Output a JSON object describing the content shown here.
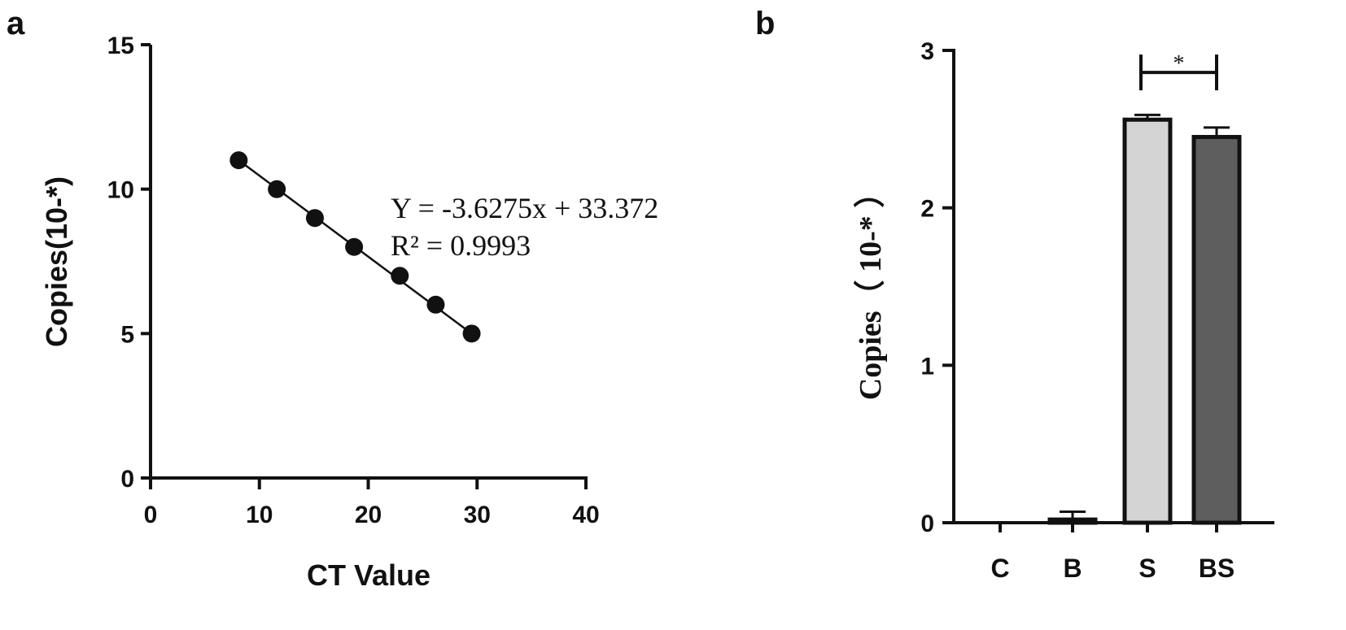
{
  "chart_data": [
    {
      "panel": "a",
      "type": "scatter",
      "xlabel": "CT Value",
      "ylabel": "Copies(10-*)",
      "xlim": [
        0,
        40
      ],
      "ylim": [
        0,
        15
      ],
      "xticks": [
        "0",
        "10",
        "20",
        "30",
        "40"
      ],
      "yticks": [
        "0",
        "5",
        "10",
        "15"
      ],
      "points": [
        {
          "x": 8.1,
          "y": 11
        },
        {
          "x": 11.6,
          "y": 10
        },
        {
          "x": 15.1,
          "y": 9
        },
        {
          "x": 18.7,
          "y": 8
        },
        {
          "x": 22.9,
          "y": 7
        },
        {
          "x": 26.2,
          "y": 6
        },
        {
          "x": 29.5,
          "y": 5
        }
      ],
      "fit_line": {
        "x": [
          8.1,
          29.5
        ],
        "y": [
          11,
          5
        ]
      },
      "equation": "Y = -3.6275x + 33.372",
      "r_squared": "R² = 0.9993",
      "grid": false
    },
    {
      "panel": "b",
      "type": "bar",
      "ylabel": "Copies（ 10-* ）",
      "categories": [
        "C",
        "B",
        "S",
        "BS"
      ],
      "values": [
        0.0,
        0.02,
        2.56,
        2.45
      ],
      "errors": [
        0.0,
        0.05,
        0.03,
        0.06
      ],
      "colors": [
        "#ffffff",
        "#ffffff",
        "#d4d4d4",
        "#5e5e5e"
      ],
      "ylim": [
        0,
        3
      ],
      "yticks": [
        "0",
        "1",
        "2",
        "3"
      ],
      "significance": {
        "from": "S",
        "to": "BS",
        "label": "*",
        "y": 2.86
      },
      "grid": false
    }
  ]
}
